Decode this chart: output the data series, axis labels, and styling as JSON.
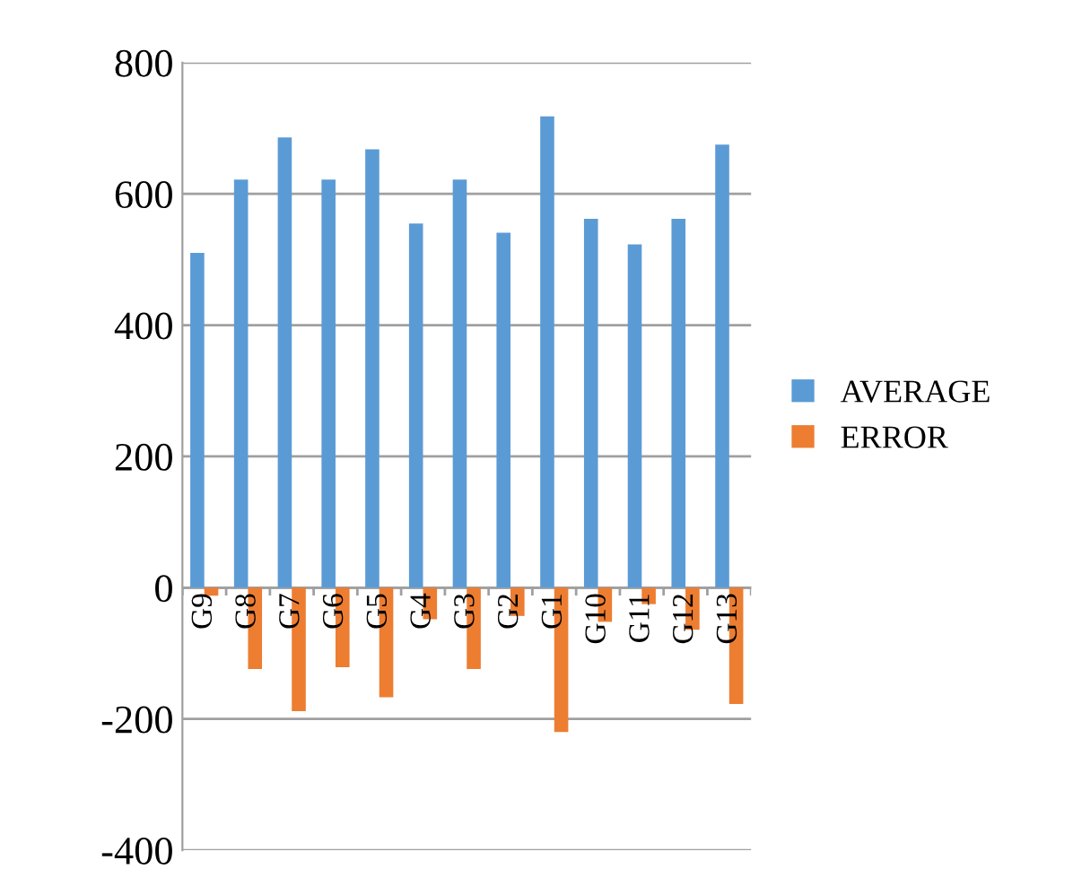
{
  "chart_data": {
    "type": "bar",
    "categories": [
      "G9",
      "G8",
      "G7",
      "G6",
      "G5",
      "G4",
      "G3",
      "G2",
      "G1",
      "G10",
      "G11",
      "G12",
      "G13"
    ],
    "series": [
      {
        "name": "AVERAGE",
        "color": "#5b9bd5",
        "values": [
          510,
          622,
          686,
          622,
          668,
          555,
          622,
          541,
          718,
          562,
          523,
          562,
          675
        ]
      },
      {
        "name": "ERROR",
        "color": "#ed7d31",
        "values": [
          -12,
          -124,
          -188,
          -121,
          -167,
          -48,
          -124,
          -43,
          -220,
          -52,
          -25,
          -64,
          -177
        ]
      }
    ],
    "ylim": [
      -400,
      800
    ],
    "yticks": [
      -400,
      -200,
      0,
      200,
      400,
      600,
      800
    ],
    "grid": "y",
    "legend": "right"
  }
}
